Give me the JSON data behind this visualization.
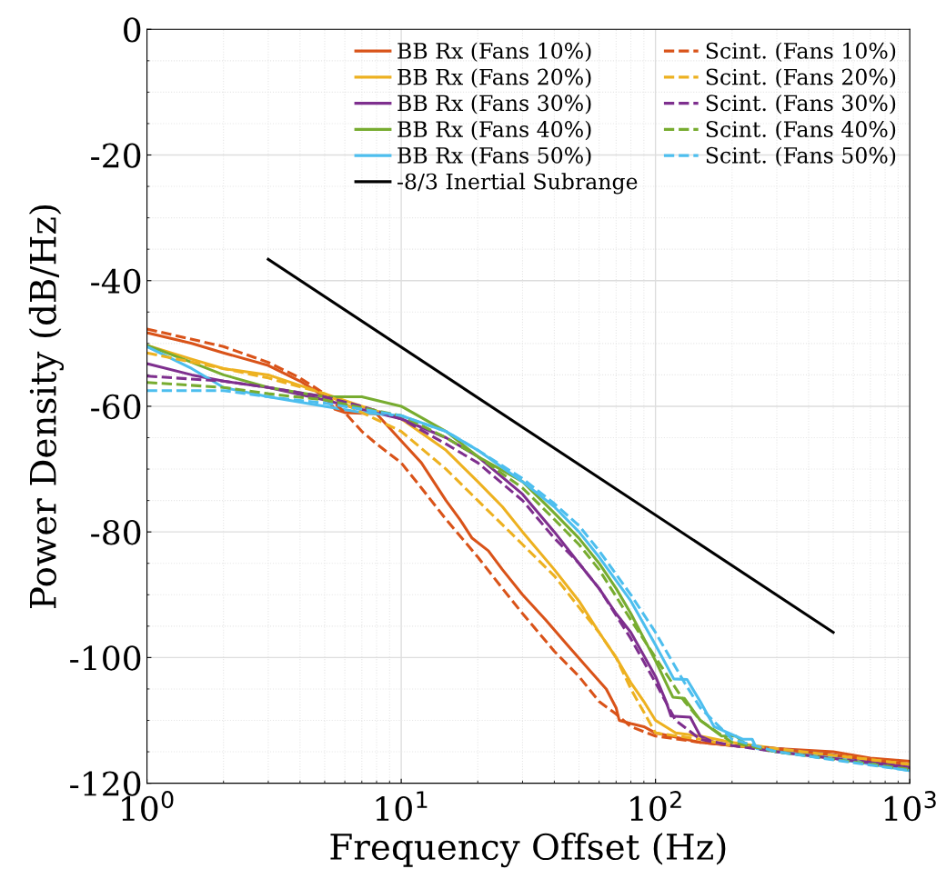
{
  "chart_data": {
    "type": "line",
    "xlabel": "Frequency Offset (Hz)",
    "ylabel": "Power Density (dB/Hz)",
    "log": "x",
    "grid": true,
    "legend": "top right",
    "marker": "none",
    "xlim": [
      1,
      1000
    ],
    "ylim": [
      -120,
      0
    ],
    "xticks": [
      {
        "value": 1,
        "label": "10$^{0}$"
      },
      {
        "value": 10,
        "label": "10$^{1}$"
      },
      {
        "value": 100,
        "label": "10$^{2}$"
      },
      {
        "value": 1000,
        "label": "10$^{3}$"
      }
    ],
    "yticks": [
      -120,
      -100,
      -80,
      -60,
      -40,
      -20,
      0
    ],
    "series": [
      {
        "name": "BB Rx (Fans 10%)",
        "color": "#d95319",
        "line_style": "solid",
        "x": [
          1,
          1.5,
          2,
          3,
          4,
          5,
          5.5,
          6,
          8,
          10,
          12,
          15,
          17,
          19,
          22,
          25,
          30,
          37,
          45,
          55,
          64,
          70,
          72,
          80,
          90,
          100,
          150,
          200,
          300,
          500,
          700,
          1000
        ],
        "values": [
          -48.3,
          -50,
          -51.5,
          -53.5,
          -56,
          -58.5,
          -60.5,
          -61,
          -61.2,
          -65.5,
          -69,
          -75,
          -78,
          -81,
          -83,
          -86,
          -90,
          -94,
          -98,
          -102,
          -105,
          -108,
          -110,
          -110.5,
          -111,
          -112,
          -113.5,
          -114,
          -114.5,
          -115,
          -116,
          -116.5
        ]
      },
      {
        "name": "BB Rx (Fans 20%)",
        "color": "#edb120",
        "line_style": "solid",
        "x": [
          1,
          1.5,
          2,
          3,
          5,
          7,
          10,
          15,
          20,
          25,
          30,
          40,
          50,
          60,
          70,
          80,
          90,
          100,
          120,
          150,
          200,
          300,
          500,
          1000
        ],
        "values": [
          -50.3,
          -52.5,
          -54,
          -55,
          -58,
          -60,
          -62,
          -67,
          -72,
          -76,
          -80,
          -86,
          -91,
          -96,
          -100,
          -104,
          -107,
          -110,
          -112,
          -112.5,
          -113.5,
          -114.5,
          -115.5,
          -117
        ]
      },
      {
        "name": "BB Rx (Fans 30%)",
        "color": "#7e2f8e",
        "line_style": "solid",
        "x": [
          1,
          1.5,
          2,
          3,
          5,
          7,
          10,
          15,
          20,
          30,
          40,
          50,
          60,
          70,
          80,
          100,
          110,
          115,
          137,
          150,
          170,
          200,
          300,
          500,
          1000
        ],
        "values": [
          -53.2,
          -55,
          -56,
          -57,
          -59,
          -60.5,
          -62,
          -65,
          -68,
          -74,
          -80,
          -85,
          -89,
          -93,
          -96,
          -103,
          -107,
          -109.3,
          -109.5,
          -112.5,
          -113.5,
          -114,
          -114.5,
          -115.5,
          -117.5
        ]
      },
      {
        "name": "BB Rx (Fans 40%)",
        "color": "#77ac30",
        "line_style": "solid",
        "x": [
          1,
          1.5,
          2,
          3,
          5,
          7,
          10,
          15,
          20,
          30,
          40,
          50,
          60,
          70,
          80,
          100,
          117,
          130,
          150,
          182,
          207,
          230,
          300,
          500,
          1000
        ],
        "values": [
          -50.3,
          -53,
          -55,
          -57,
          -58.5,
          -58.5,
          -60,
          -64,
          -68,
          -72,
          -77,
          -81,
          -85,
          -89,
          -93,
          -100.5,
          -106.3,
          -106.5,
          -110,
          -112.5,
          -112.5,
          -114,
          -115,
          -116,
          -117.8
        ]
      },
      {
        "name": "BB Rx (Fans 50%)",
        "color": "#4dbeee",
        "line_style": "solid",
        "x": [
          1,
          1.5,
          2,
          3,
          5,
          7,
          10,
          15,
          20,
          30,
          40,
          50,
          60,
          80,
          100,
          118,
          133,
          150,
          170,
          220,
          240,
          250,
          300,
          500,
          1000
        ],
        "values": [
          -50.5,
          -54,
          -57,
          -58.5,
          -60,
          -61,
          -61.5,
          -64,
          -67,
          -72,
          -76,
          -80,
          -84,
          -91,
          -98,
          -103.4,
          -103.5,
          -107,
          -111,
          -113,
          -113,
          -114.5,
          -115,
          -116,
          -118
        ]
      },
      {
        "name": "-8/3 Inertial Subrange",
        "color": "#000000",
        "line_style": "solid",
        "x": [
          3,
          500
        ],
        "values": [
          -36.6,
          -96
        ]
      },
      {
        "name": "Scint. (Fans 10%)",
        "color": "#d95319",
        "line_style": "dashed",
        "x": [
          1,
          2,
          3,
          4,
          5,
          6,
          7,
          8,
          10,
          12,
          15,
          20,
          25,
          30,
          40,
          50,
          60,
          70,
          80,
          100,
          150,
          200,
          300,
          500,
          1000
        ],
        "values": [
          -47.7,
          -50.5,
          -53,
          -55.5,
          -58,
          -61,
          -64,
          -66,
          -69,
          -73,
          -78,
          -84,
          -89,
          -93,
          -99,
          -103,
          -107,
          -109,
          -111,
          -112.5,
          -113.5,
          -114,
          -114.5,
          -115.5,
          -117
        ]
      },
      {
        "name": "Scint. (Fans 20%)",
        "color": "#edb120",
        "line_style": "dashed",
        "x": [
          1,
          2,
          3,
          5,
          7,
          10,
          15,
          20,
          30,
          40,
          50,
          60,
          70,
          80,
          100,
          150,
          200,
          300,
          1000
        ],
        "values": [
          -51.5,
          -54,
          -55.5,
          -58,
          -61,
          -64,
          -70,
          -75,
          -82,
          -87,
          -92,
          -96,
          -100,
          -105,
          -112,
          -113,
          -114,
          -114.5,
          -117
        ]
      },
      {
        "name": "Scint. (Fans 30%)",
        "color": "#7e2f8e",
        "line_style": "dashed",
        "x": [
          1,
          2,
          3,
          5,
          7,
          10,
          15,
          20,
          30,
          40,
          50,
          60,
          80,
          100,
          120,
          150,
          200,
          300,
          1000
        ],
        "values": [
          -55.2,
          -56,
          -57,
          -58.5,
          -60,
          -62,
          -66,
          -69,
          -75,
          -81,
          -85,
          -89,
          -97,
          -104,
          -110,
          -113,
          -114,
          -115,
          -117.5
        ]
      },
      {
        "name": "Scint. (Fans 40%)",
        "color": "#77ac30",
        "line_style": "dashed",
        "x": [
          1,
          2,
          3,
          5,
          10,
          15,
          20,
          30,
          40,
          50,
          60,
          80,
          100,
          130,
          150,
          200,
          300,
          1000
        ],
        "values": [
          -56.2,
          -57,
          -58,
          -59,
          -61.5,
          -65,
          -68,
          -73,
          -78,
          -82,
          -86,
          -94,
          -100,
          -107,
          -110,
          -113.5,
          -115,
          -117.8
        ]
      },
      {
        "name": "Scint. (Fans 50%)",
        "color": "#4dbeee",
        "line_style": "dashed",
        "x": [
          1,
          2,
          3,
          5,
          10,
          15,
          20,
          30,
          40,
          50,
          60,
          80,
          100,
          130,
          150,
          200,
          300,
          1000
        ],
        "values": [
          -57.5,
          -57.5,
          -58.5,
          -59.5,
          -61.5,
          -64,
          -67,
          -71.5,
          -75.5,
          -79,
          -83,
          -90,
          -96,
          -104,
          -108,
          -113,
          -115,
          -118
        ]
      }
    ]
  }
}
